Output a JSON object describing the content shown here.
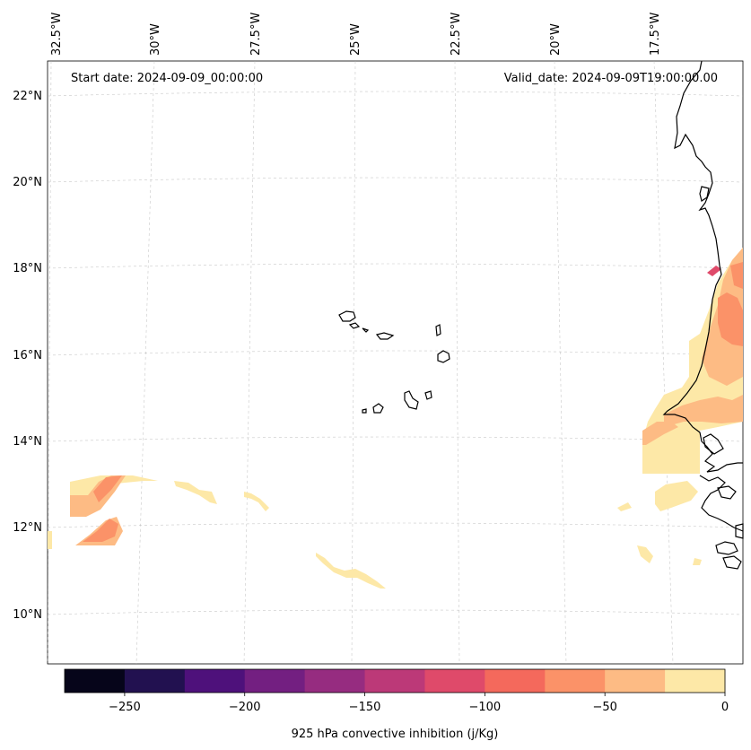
{
  "map": {
    "start_date": "Start date: 2024-09-09_00:00:00",
    "valid_date": "Valid_date: 2024-09-09T19:00:00.00",
    "lon_labels": [
      "32.5°W",
      "30°W",
      "27.5°W",
      "25°W",
      "22.5°W",
      "20°W",
      "17.5°W"
    ],
    "lat_labels": [
      "22°N",
      "20°N",
      "18°N",
      "16°N",
      "14°N",
      "12°N",
      "10°N"
    ]
  },
  "colorbar": {
    "title": "925 hPa convective inhibition (j/Kg)",
    "tick_labels": [
      "−250",
      "−200",
      "−150",
      "−100",
      "−50",
      "0"
    ],
    "colors": [
      "#06051a",
      "#221150",
      "#4e117b",
      "#731f81",
      "#962c80",
      "#bc3978",
      "#df4a6a",
      "#f4695c",
      "#fb9268",
      "#fdbb84",
      "#fde8a7"
    ]
  },
  "chart_data": {
    "type": "heatmap",
    "title": "925 hPa convective inhibition",
    "variable": "925 hPa convective inhibition (j/Kg)",
    "start_date": "2024-09-09_00:00:00",
    "valid_date": "2024-09-09T19:00:00.00",
    "lon_range": [
      -33,
      -15.5
    ],
    "lat_range": [
      9,
      22.8
    ],
    "color_levels": [
      -275,
      -250,
      -225,
      -200,
      -175,
      -150,
      -125,
      -100,
      -75,
      -50,
      -25,
      0
    ],
    "colorbar_ticks": [
      -250,
      -200,
      -150,
      -100,
      -50,
      0
    ]
  }
}
